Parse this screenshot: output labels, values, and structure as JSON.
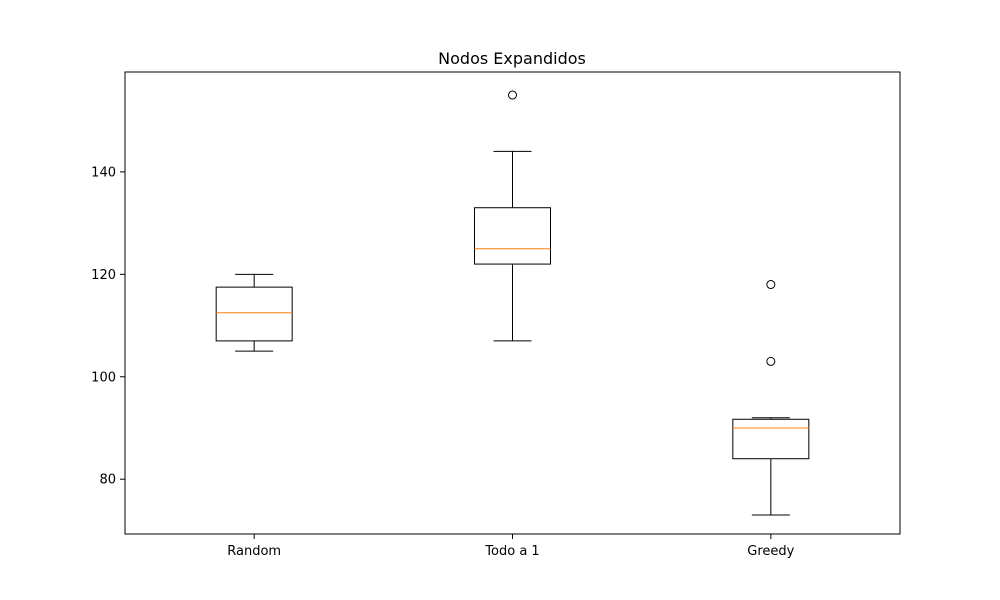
{
  "chart_data": {
    "type": "box",
    "title": "Nodos Expandidos",
    "xlabel": "",
    "ylabel": "",
    "categories": [
      "Random",
      "Todo a 1",
      "Greedy"
    ],
    "boxes": [
      {
        "category": "Random",
        "whisker_low": 105,
        "q1": 107,
        "median": 112.5,
        "q3": 117.5,
        "whisker_high": 120,
        "outliers": []
      },
      {
        "category": "Todo a 1",
        "whisker_low": 107,
        "q1": 122,
        "median": 125,
        "q3": 133,
        "whisker_high": 144,
        "outliers": [
          155
        ]
      },
      {
        "category": "Greedy",
        "whisker_low": 73,
        "q1": 84,
        "median": 90,
        "q3": 91.7,
        "whisker_high": 92,
        "outliers": [
          103,
          118
        ]
      }
    ],
    "ylim": [
      69.3,
      159.5
    ],
    "yticks": [
      80,
      100,
      120,
      140
    ],
    "grid": false,
    "colors": {
      "box": "#000000",
      "median": "#ff7f0e",
      "outlier": "#000000"
    }
  }
}
